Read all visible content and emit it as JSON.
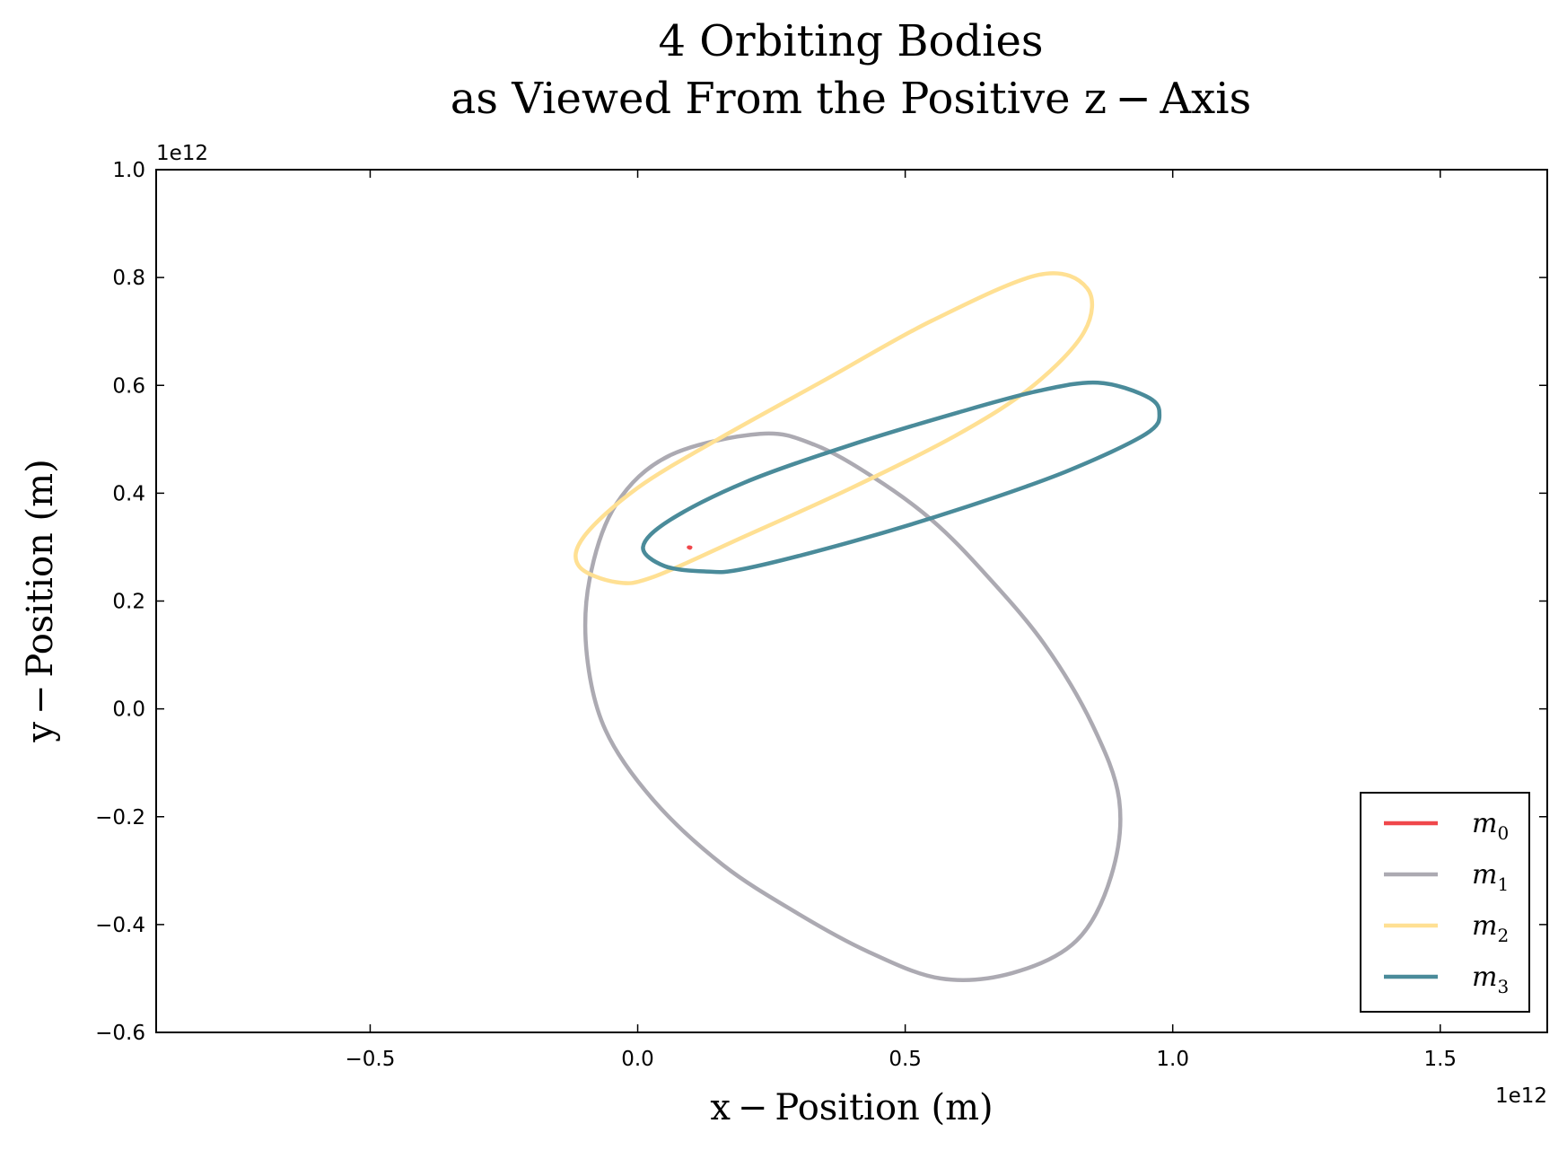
{
  "chart_data": {
    "type": "line",
    "title": "4 Orbiting Bodies",
    "subtitle": "as Viewed From the Positive z − Axis",
    "xlabel": "x − Position (m)",
    "ylabel": "y − Position (m)",
    "x_offset_text": "1e12",
    "y_offset_text": "1e12",
    "xlim": [
      -0.9,
      1.7
    ],
    "ylim": [
      -0.6,
      1.0
    ],
    "xticks": [
      -0.5,
      0.0,
      0.5,
      1.0,
      1.5
    ],
    "yticks": [
      -0.6,
      -0.4,
      -0.2,
      0.0,
      0.2,
      0.4,
      0.6,
      0.8,
      1.0
    ],
    "xtick_labels": [
      "−0.5",
      "0.0",
      "0.5",
      "1.0",
      "1.5"
    ],
    "ytick_labels": [
      "−0.6",
      "−0.4",
      "−0.2",
      "0.0",
      "0.2",
      "0.4",
      "0.6",
      "0.8",
      "1.0"
    ],
    "grid": false,
    "legend_position": "lower-right",
    "series": [
      {
        "name": "m",
        "sub": "0",
        "color": "#f0474b",
        "x": [
          0.095,
          0.1,
          0.098,
          0.094,
          0.095
        ],
        "y": [
          0.301,
          0.3,
          0.297,
          0.299,
          0.301
        ]
      },
      {
        "name": "m",
        "sub": "1",
        "color": "#acaab2",
        "x": [
          0.229,
          0.33,
          0.44,
          0.55,
          0.65,
          0.76,
          0.85,
          0.9,
          0.885,
          0.82,
          0.7,
          0.566,
          0.43,
          0.3,
          0.16,
          0.03,
          -0.06,
          -0.095,
          -0.09,
          -0.04,
          0.06,
          0.229
        ],
        "y": [
          0.51,
          0.49,
          0.43,
          0.35,
          0.25,
          0.12,
          -0.03,
          -0.17,
          -0.31,
          -0.43,
          -0.49,
          -0.5,
          -0.45,
          -0.38,
          -0.29,
          -0.17,
          -0.04,
          0.1,
          0.24,
          0.38,
          0.47,
          0.51
        ]
      },
      {
        "name": "m",
        "sub": "2",
        "color": "#ffe093",
        "x": [
          0.75,
          0.84,
          0.835,
          0.74,
          0.6,
          0.4,
          0.2,
          0.03,
          -0.04,
          -0.11,
          -0.1,
          0.0,
          0.15,
          0.35,
          0.55,
          0.75
        ],
        "y": [
          0.805,
          0.78,
          0.7,
          0.6,
          0.51,
          0.41,
          0.32,
          0.245,
          0.235,
          0.265,
          0.32,
          0.41,
          0.5,
          0.61,
          0.72,
          0.805
        ]
      },
      {
        "name": "m",
        "sub": "3",
        "color": "#4a8b9a",
        "x": [
          0.86,
          0.95,
          0.975,
          0.95,
          0.8,
          0.6,
          0.4,
          0.2,
          0.125,
          0.05,
          0.01,
          0.06,
          0.2,
          0.4,
          0.6,
          0.75,
          0.86
        ],
        "y": [
          0.605,
          0.58,
          0.55,
          0.51,
          0.44,
          0.37,
          0.31,
          0.26,
          0.255,
          0.265,
          0.3,
          0.35,
          0.42,
          0.49,
          0.55,
          0.59,
          0.605
        ]
      }
    ]
  }
}
